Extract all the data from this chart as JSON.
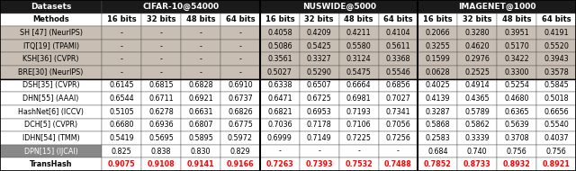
{
  "title_row_labels": [
    "Datasets",
    "CIFAR-10@54000",
    "NUSWIDE@5000",
    "IMAGENET@1000"
  ],
  "bit_labels": [
    "Methods",
    "16 bits",
    "32 bits",
    "48 bits",
    "64 bits",
    "16 bits",
    "32 bits",
    "48 bits",
    "64 bits",
    "16 bits",
    "32 bits",
    "48 bits",
    "64 bits"
  ],
  "rows": [
    {
      "method": "SH [47] (NeurIPS)",
      "group": "shallow",
      "values": [
        "-",
        "-",
        "-",
        "-",
        "0.4058",
        "0.4209",
        "0.4211",
        "0.4104",
        "0.2066",
        "0.3280",
        "0.3951",
        "0.4191"
      ]
    },
    {
      "method": "ITQ[19] (TPAMI)",
      "group": "shallow",
      "values": [
        "-",
        "-",
        "-",
        "-",
        "0.5086",
        "0.5425",
        "0.5580",
        "0.5611",
        "0.3255",
        "0.4620",
        "0.5170",
        "0.5520"
      ]
    },
    {
      "method": "KSH[36] (CVPR)",
      "group": "shallow",
      "values": [
        "-",
        "-",
        "-",
        "-",
        "0.3561",
        "0.3327",
        "0.3124",
        "0.3368",
        "0.1599",
        "0.2976",
        "0.3422",
        "0.3943"
      ]
    },
    {
      "method": "BRE[30] (NeurIPS)",
      "group": "shallow",
      "values": [
        "-",
        "-",
        "-",
        "-",
        "0.5027",
        "0.5290",
        "0.5475",
        "0.5546",
        "0.0628",
        "0.2525",
        "0.3300",
        "0.3578"
      ]
    },
    {
      "method": "DSH[35] (CVPR)",
      "group": "deep",
      "values": [
        "0.6145",
        "0.6815",
        "0.6828",
        "0.6910",
        "0.6338",
        "0.6507",
        "0.6664",
        "0.6856",
        "0.4025",
        "0.4914",
        "0.5254",
        "0.5845"
      ]
    },
    {
      "method": "DHN[55] (AAAI)",
      "group": "deep",
      "values": [
        "0.6544",
        "0.6711",
        "0.6921",
        "0.6737",
        "0.6471",
        "0.6725",
        "0.6981",
        "0.7027",
        "0.4139",
        "0.4365",
        "0.4680",
        "0.5018"
      ]
    },
    {
      "method": "HashNet[6] (ICCV)",
      "group": "deep",
      "values": [
        "0.5105",
        "0.6278",
        "0.6631",
        "0.6826",
        "0.6821",
        "0.6953",
        "0.7193",
        "0.7341",
        "0.3287",
        "0.5789",
        "0.6365",
        "0.6656"
      ]
    },
    {
      "method": "DCH[5] (CVPR)",
      "group": "deep",
      "values": [
        "0.6680",
        "0.6936",
        "0.6807",
        "0.6775",
        "0.7036",
        "0.7178",
        "0.7106",
        "0.7056",
        "0.5868",
        "0.5862",
        "0.5639",
        "0.5540"
      ]
    },
    {
      "method": "IDHN[54] (TMM)",
      "group": "deep",
      "values": [
        "0.5419",
        "0.5695",
        "0.5895",
        "0.5972",
        "0.6999",
        "0.7149",
        "0.7225",
        "0.7256",
        "0.2583",
        "0.3339",
        "0.3708",
        "0.4037"
      ]
    },
    {
      "method": "DPN[15] (IJCAI)",
      "group": "dpn",
      "values": [
        "0.825",
        "0.838",
        "0.830",
        "0.829",
        "-",
        "-",
        "-",
        "-",
        "0.684",
        "0.740",
        "0.756",
        "0.756"
      ]
    },
    {
      "method": "TransHash",
      "group": "transhash",
      "values": [
        "0.9075",
        "0.9108",
        "0.9141",
        "0.9166",
        "0.7263",
        "0.7393",
        "0.7532",
        "0.7488",
        "0.7852",
        "0.8733",
        "0.8932",
        "0.8921"
      ]
    }
  ],
  "col_widths": [
    1.55,
    0.6,
    0.6,
    0.6,
    0.6,
    0.6,
    0.6,
    0.6,
    0.6,
    0.6,
    0.6,
    0.6,
    0.6
  ],
  "shallow_bg": "#c8beb4",
  "deep_bg": "#ffffff",
  "dpn_bg": "#888888",
  "header_bg": "#1a1a1a",
  "header_fg": "#ffffff",
  "transhash_color": "#ff0000",
  "dpn_text_color": "#ffffff"
}
